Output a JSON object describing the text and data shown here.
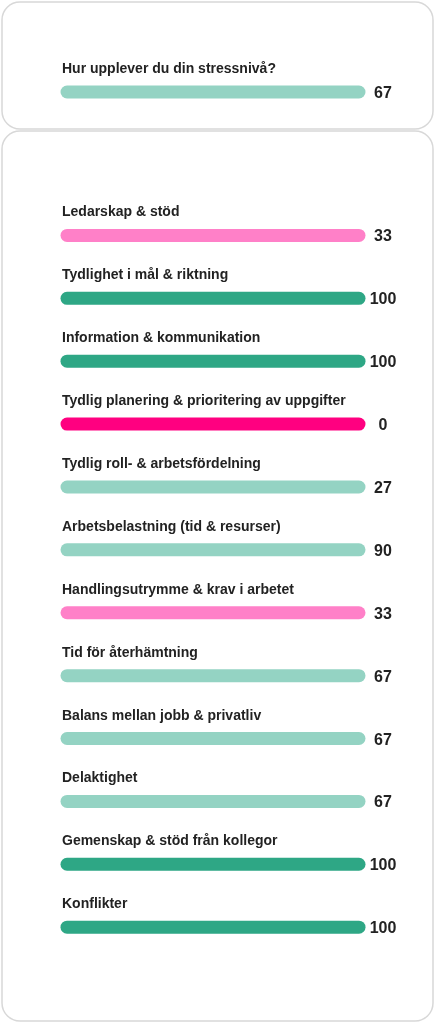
{
  "chart_data": [
    {
      "type": "other",
      "categories": [
        "Hur upplever du din stressnivå?"
      ],
      "values": [
        67
      ],
      "colors": [
        "#94d3c3"
      ],
      "data_labels": true
    },
    {
      "type": "other",
      "categories": [
        "Ledarskap & stöd",
        "Tydlighet i mål & riktning",
        "Information & kommunikation",
        "Tydlig planering & prioritering av uppgifter",
        "Tydlig roll- & arbetsfördelning",
        "Arbetsbelastning (tid & resurser)",
        "Handlingsutrymme & krav i arbetet",
        "Tid för återhämtning",
        "Balans mellan jobb & privatliv",
        "Delaktighet",
        "Gemenskap & stöd från kollegor",
        "Konflikter"
      ],
      "values": [
        33,
        100,
        100,
        0,
        27,
        90,
        33,
        67,
        67,
        67,
        100,
        100
      ],
      "colors": [
        "#ff80c8",
        "#2ea785",
        "#2ea785",
        "#ff0080",
        "#94d3c3",
        "#94d3c3",
        "#ff80c8",
        "#94d3c3",
        "#94d3c3",
        "#94d3c3",
        "#2ea785",
        "#2ea785"
      ],
      "data_labels": true
    }
  ]
}
